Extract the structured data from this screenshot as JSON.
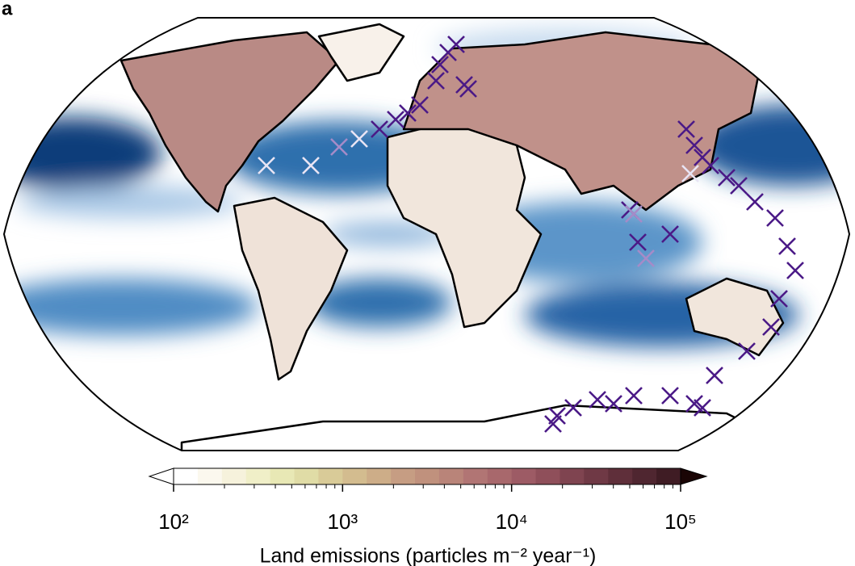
{
  "panel_label": "a",
  "chart_data": {
    "type": "colorbar",
    "xlabel": "Land emissions (particles m⁻² year⁻¹)",
    "xlim": [
      100,
      100000
    ],
    "log_scale": true,
    "xticks": [
      {
        "value": 100,
        "label": "10²"
      },
      {
        "value": 1000,
        "label": "10³"
      },
      {
        "value": 10000,
        "label": "10⁴"
      },
      {
        "value": 100000,
        "label": "10⁵"
      }
    ],
    "colors": [
      "#ffffff",
      "#fbf8ee",
      "#f6f2dc",
      "#f0efc8",
      "#e8e8b5",
      "#e0dca6",
      "#d9cb98",
      "#d3bc8f",
      "#cdad88",
      "#c69d83",
      "#c0917d",
      "#b98479",
      "#b17574",
      "#a8686c",
      "#9d5b65",
      "#8f4f5a",
      "#7f4450",
      "#6f3945",
      "#5f2f3a",
      "#4f2630",
      "#3f1c24"
    ],
    "extend_colors": [
      "#ffffff",
      "#1a0505"
    ]
  }
}
